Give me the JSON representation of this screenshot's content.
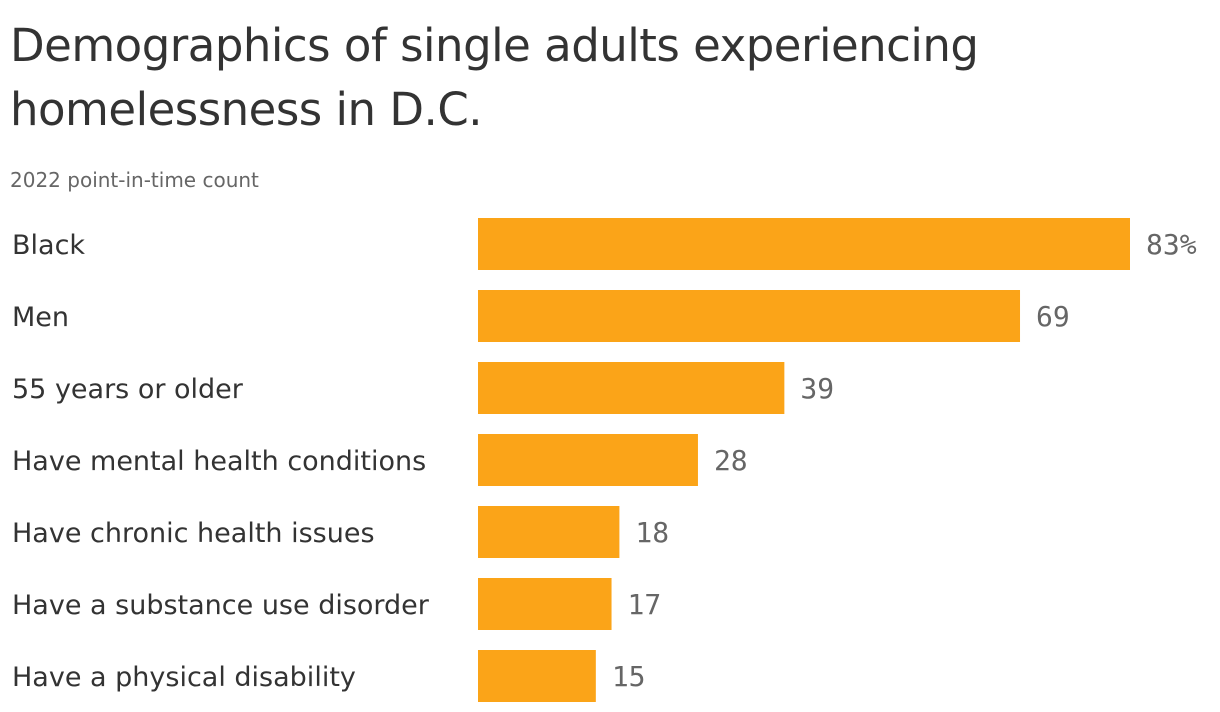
{
  "header": {
    "title": "Demographics of single adults experiencing homelessness in D.C.",
    "subtitle": "2022 point-in-time count"
  },
  "chart_data": {
    "type": "bar",
    "orientation": "horizontal",
    "title": "Demographics of single adults experiencing homelessness in D.C.",
    "subtitle": "2022 point-in-time count",
    "categories": [
      "Black",
      "Men",
      "55 years or older",
      "Have mental health conditions",
      "Have chronic health issues",
      "Have a substance use disorder",
      "Have a physical disability"
    ],
    "values": [
      83,
      69,
      39,
      28,
      18,
      17,
      15
    ],
    "value_labels": [
      "83%",
      "69",
      "39",
      "28",
      "18",
      "17",
      "15"
    ],
    "unit": "%",
    "xlim": [
      0,
      83
    ],
    "grid": false,
    "legend": "none",
    "bar_color": "#fba418"
  }
}
